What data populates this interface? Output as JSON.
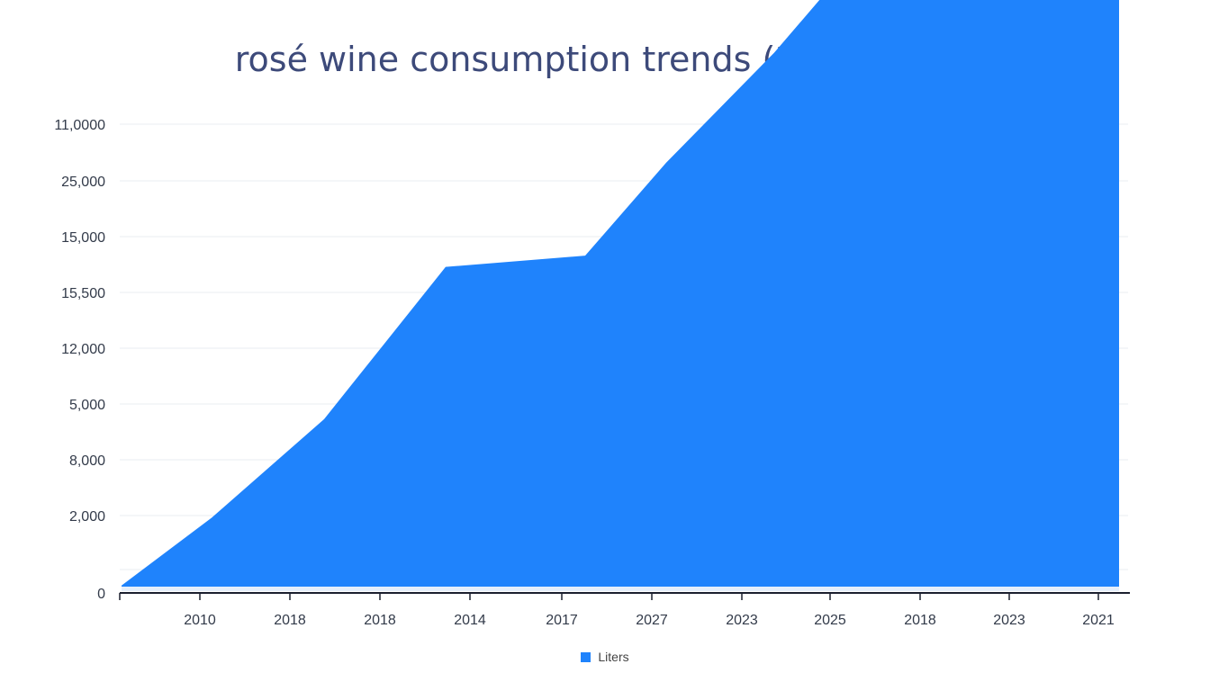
{
  "chart_data": {
    "type": "area",
    "title": "rosé wine consumption trends (2010-2023)",
    "xlabel": "",
    "ylabel": "",
    "y_tick_labels": [
      "0",
      "2,000",
      "8,000",
      "5,000",
      "12,000",
      "15,500",
      "15,000",
      "25,000",
      "11,0000"
    ],
    "x_tick_labels": [
      "2010",
      "2018",
      "2018",
      "2014",
      "2017",
      "2027",
      "2023",
      "2025",
      "2018",
      "2023",
      "2021"
    ],
    "series": [
      {
        "name": "Liters",
        "color": "#1f83fc",
        "points": [
          {
            "x": 0.0,
            "y": 0.1
          },
          {
            "x": 1.0,
            "y": 1.3
          },
          {
            "x": 2.25,
            "y": 3.05
          },
          {
            "x": 3.6,
            "y": 5.75
          },
          {
            "x": 5.15,
            "y": 5.95
          },
          {
            "x": 6.05,
            "y": 7.6
          },
          {
            "x": 7.25,
            "y": 9.55
          },
          {
            "x": 8.7,
            "y": 12.25
          },
          {
            "x": 9.35,
            "y": 13.3
          },
          {
            "x": 10.85,
            "y": 15.05
          },
          {
            "x": 11.0,
            "y": 15.05
          }
        ]
      }
    ],
    "grid": true,
    "legend_position": "bottom-center"
  }
}
